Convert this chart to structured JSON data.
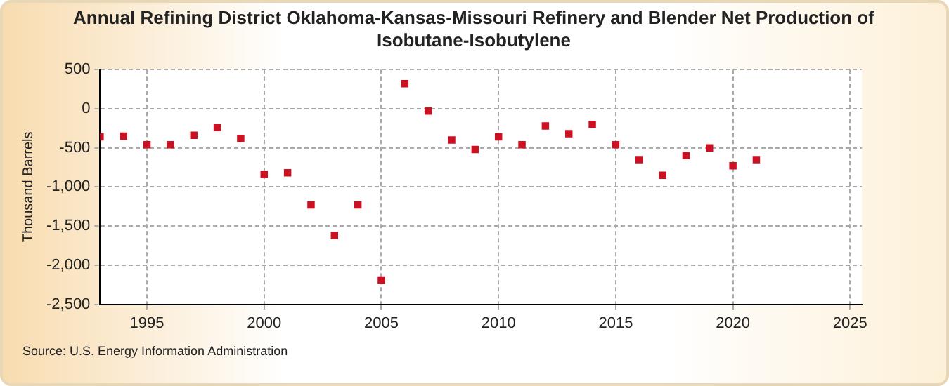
{
  "chart_data": {
    "type": "scatter",
    "title": "Annual Refining District Oklahoma-Kansas-Missouri Refinery and Blender Net Production of Isobutane-Isobutylene",
    "ylabel": "Thousand Barrels",
    "x": [
      1993,
      1994,
      1995,
      1996,
      1997,
      1998,
      1999,
      2000,
      2001,
      2002,
      2003,
      2004,
      2005,
      2006,
      2007,
      2008,
      2009,
      2010,
      2011,
      2012,
      2013,
      2014,
      2015,
      2016,
      2017,
      2018,
      2019,
      2020,
      2021
    ],
    "series": [
      {
        "color": "#cc1122",
        "values": [
          -360,
          -350,
          -460,
          -460,
          -340,
          -240,
          -380,
          -840,
          -820,
          -1230,
          -1620,
          -1230,
          -2190,
          320,
          -30,
          -400,
          -520,
          -360,
          -460,
          -220,
          -320,
          -200,
          -460,
          -650,
          -850,
          -600,
          -500,
          -730,
          -650
        ]
      }
    ],
    "xlim": [
      1993,
      2025.5
    ],
    "xticks": [
      1995,
      2000,
      2005,
      2010,
      2015,
      2020,
      2025
    ],
    "ylim": [
      -2500,
      500
    ],
    "yticks": [
      {
        "value": -2500,
        "label": "-2,500"
      },
      {
        "value": -2000,
        "label": "-2,000"
      },
      {
        "value": -1500,
        "label": "-1,500"
      },
      {
        "value": -1000,
        "label": "-1,000"
      },
      -500,
      0,
      500
    ],
    "grid": true,
    "line_style": "dashed",
    "marker": "square",
    "legend": false,
    "annotations": [
      "Source: U.S. Energy Information Administration"
    ]
  }
}
